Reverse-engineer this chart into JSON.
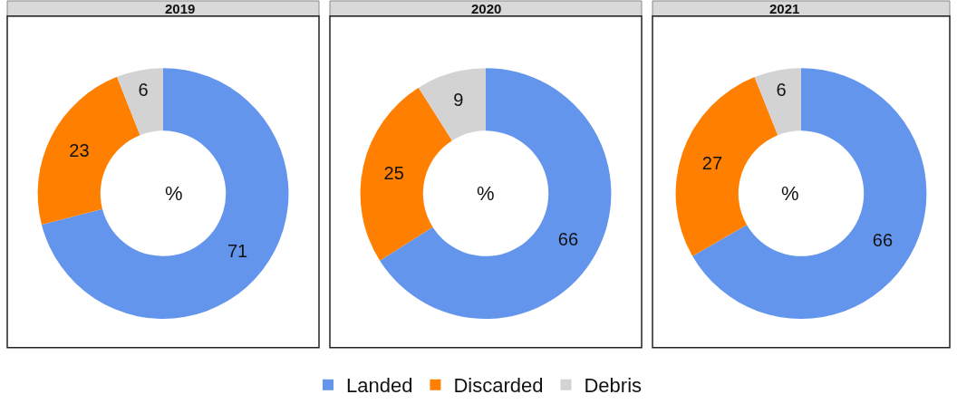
{
  "chart_data": {
    "type": "donut",
    "categories": [
      "Landed",
      "Discarded",
      "Debris"
    ],
    "colors": [
      "#6495ed",
      "#ff8000",
      "#d3d3d3"
    ],
    "data_labels": true,
    "legend": "bottom",
    "annotations": [
      "%",
      "%",
      "%"
    ],
    "series": [
      {
        "name": "2019",
        "values": [
          71,
          23,
          6
        ]
      },
      {
        "name": "2020",
        "values": [
          66,
          25,
          9
        ]
      },
      {
        "name": "2021",
        "values": [
          66,
          27,
          6
        ]
      }
    ]
  }
}
